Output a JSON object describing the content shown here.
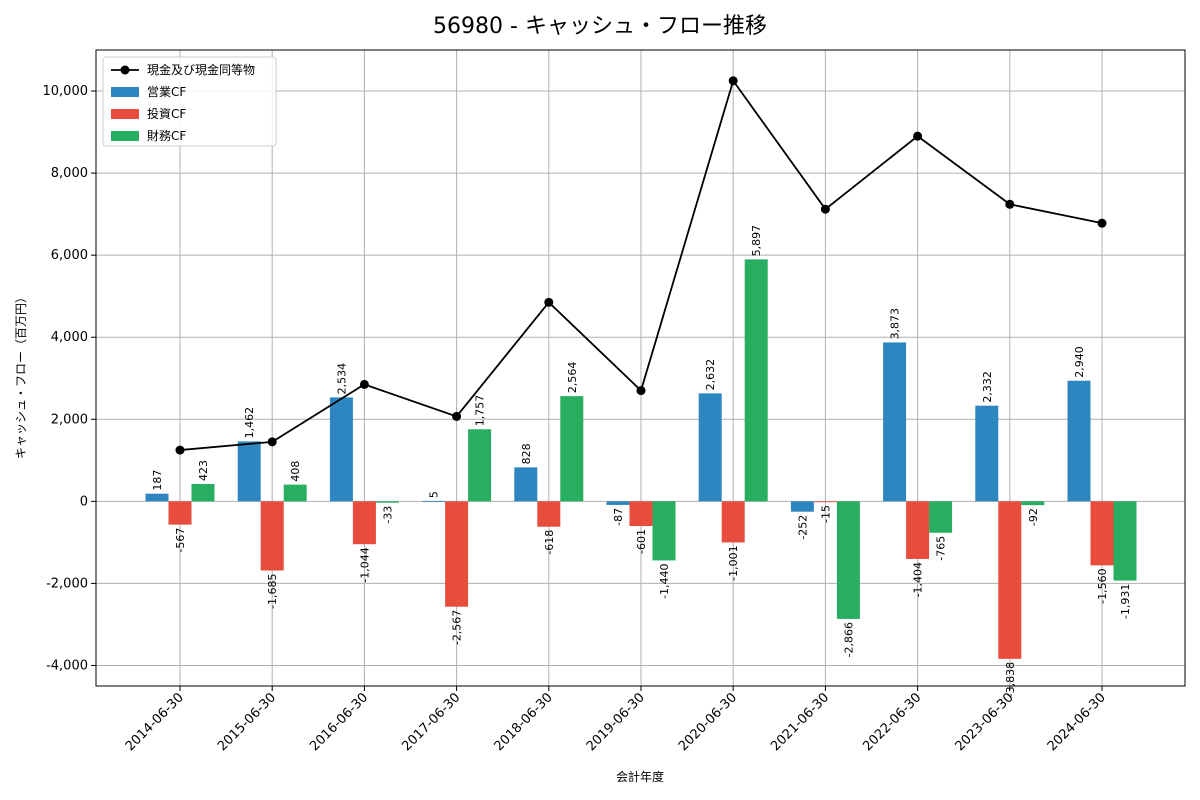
{
  "chart_data": {
    "type": "bar",
    "title": "56980 - キャッシュ・フロー推移",
    "xlabel": "会計年度",
    "ylabel": "キャッシュ・フロー（百万円）",
    "ylim": [
      -4500,
      11000
    ],
    "yticks": [
      -4000,
      -2000,
      0,
      2000,
      4000,
      6000,
      8000,
      10000
    ],
    "ytick_labels": [
      "-4,000",
      "-2,000",
      "0",
      "2,000",
      "4,000",
      "6,000",
      "8,000",
      "10,000"
    ],
    "grid": true,
    "legend_position": "top-left",
    "categories": [
      "2014-06-30",
      "2015-06-30",
      "2016-06-30",
      "2017-06-30",
      "2018-06-30",
      "2019-06-30",
      "2020-06-30",
      "2021-06-30",
      "2022-06-30",
      "2023-06-30",
      "2024-06-30"
    ],
    "line": {
      "name": "現金及び現金同等物",
      "color": "#000000",
      "values": [
        1250,
        1450,
        2850,
        2070,
        4850,
        2700,
        10250,
        7120,
        8900,
        7240,
        6780
      ]
    },
    "series": [
      {
        "name": "営業CF",
        "color": "#2e86c1",
        "values": [
          187,
          1462,
          2534,
          5,
          828,
          -87,
          2632,
          -252,
          3873,
          2332,
          2940
        ],
        "labels": [
          "187",
          "1,462",
          "2,534",
          "5",
          "828",
          "-87",
          "2,632",
          "-252",
          "3,873",
          "2,332",
          "2,940"
        ]
      },
      {
        "name": "投資CF",
        "color": "#e74c3c",
        "values": [
          -567,
          -1685,
          -1044,
          -2567,
          -618,
          -601,
          -1001,
          -15,
          -1404,
          -3838,
          -1560
        ],
        "labels": [
          "-567",
          "-1,685",
          "-1,044",
          "-2,567",
          "-618",
          "-601",
          "-1,001",
          "-15",
          "-1,404",
          "-3,838",
          "-1,560"
        ]
      },
      {
        "name": "財務CF",
        "color": "#27ae60",
        "values": [
          423,
          408,
          -33,
          1757,
          2564,
          -1440,
          5897,
          -2866,
          -765,
          -92,
          -1931
        ],
        "labels": [
          "423",
          "408",
          "-33",
          "1,757",
          "2,564",
          "-1,440",
          "5,897",
          "-2,866",
          "-765",
          "-92",
          "-1,931"
        ]
      }
    ]
  }
}
